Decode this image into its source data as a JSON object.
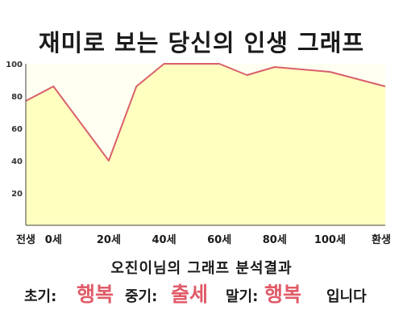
{
  "title": "재미로 보는 당신의 인생 그래프",
  "chart_data": {
    "type": "area",
    "x": [
      -10,
      0,
      20,
      30,
      40,
      60,
      70,
      80,
      100,
      120
    ],
    "y": [
      77,
      86,
      40,
      86,
      100,
      100,
      93,
      98,
      95,
      86
    ],
    "ylim": [
      0,
      100
    ],
    "xlim": [
      -10,
      120
    ],
    "y_ticks": [
      20,
      40,
      60,
      80,
      100
    ],
    "x_ticks": [
      {
        "x": -10,
        "label": "전생"
      },
      {
        "x": 0,
        "label": "0세"
      },
      {
        "x": 20,
        "label": "20세"
      },
      {
        "x": 40,
        "label": "40세"
      },
      {
        "x": 60,
        "label": "60세"
      },
      {
        "x": 80,
        "label": "80세"
      },
      {
        "x": 100,
        "label": "100세"
      },
      {
        "x": 120,
        "label": "환생"
      }
    ],
    "grid": false,
    "colors": {
      "fill": "#ffffc0",
      "line": "#d9606a",
      "background": "#fffff2",
      "axis": "#444444"
    }
  },
  "analysis": {
    "heading": "오진이님의 그래프 분석결과",
    "early_label": "초기:",
    "early_value": "행복",
    "middle_label": "중기:",
    "middle_value": "출세",
    "late_label": "말기:",
    "late_value": "행복",
    "suffix": "입니다"
  }
}
